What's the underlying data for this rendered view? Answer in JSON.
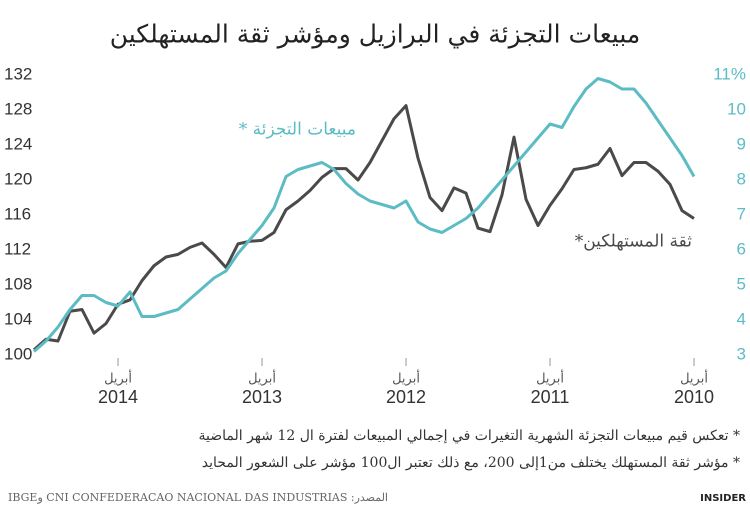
{
  "chart_data": {
    "type": "line",
    "title": "مبيعات التجزئة في البرازيل ومؤشر ثقة المستهلكين",
    "categories": [
      null,
      null,
      null,
      null,
      null,
      null,
      null,
      "أبريل",
      null,
      null,
      null,
      null,
      null,
      null,
      null,
      null,
      null,
      null,
      null,
      "أبريل",
      null,
      null,
      null,
      null,
      null,
      null,
      null,
      null,
      null,
      null,
      null,
      "أبريل",
      null,
      null,
      null,
      null,
      null,
      null,
      null,
      null,
      null,
      null,
      null,
      "أبريل",
      null,
      null,
      null,
      null,
      null,
      null,
      null,
      null,
      null,
      null,
      null,
      "أبريل"
    ],
    "years": [
      null,
      null,
      null,
      null,
      null,
      null,
      null,
      "2014",
      null,
      null,
      null,
      null,
      null,
      null,
      null,
      null,
      null,
      null,
      null,
      "2013",
      null,
      null,
      null,
      null,
      null,
      null,
      null,
      null,
      null,
      null,
      null,
      "2012",
      null,
      null,
      null,
      null,
      null,
      null,
      null,
      null,
      null,
      null,
      null,
      "2011",
      null,
      null,
      null,
      null,
      null,
      null,
      null,
      null,
      null,
      null,
      null,
      "2010"
    ],
    "series": [
      {
        "name": "ثقة المستهلكين*",
        "color": "#4a4a4a",
        "axis": "y",
        "values": [
          100.6,
          101.8,
          101.6,
          105,
          105.2,
          102.5,
          103.6,
          105.8,
          106.3,
          108.5,
          110.2,
          111.2,
          111.5,
          112.3,
          112.8,
          111.5,
          110,
          112.7,
          113,
          113.1,
          114,
          116.6,
          117.6,
          118.8,
          120.3,
          121.3,
          121.3,
          120,
          122,
          124.5,
          127,
          128.5,
          122.5,
          118,
          116.5,
          119.1,
          118.5,
          114.5,
          114.1,
          118.3,
          124.9,
          117.8,
          114.8,
          117.1,
          119,
          121.2,
          121.4,
          121.8,
          123.6,
          120.5,
          122,
          122,
          121,
          119.5,
          116.5,
          115.6
        ]
      },
      {
        "name": "مبيعات التجزئة *",
        "color": "#5bbcc4",
        "axis": "y2",
        "values": [
          3.1,
          3.4,
          3.8,
          4.3,
          4.7,
          4.7,
          4.5,
          4.4,
          4.8,
          4.1,
          4.1,
          4.2,
          4.3,
          4.6,
          4.9,
          5.2,
          5.4,
          5.9,
          6.3,
          6.7,
          7.2,
          8.1,
          8.3,
          8.4,
          8.5,
          8.3,
          7.9,
          7.6,
          7.4,
          7.3,
          7.2,
          7.4,
          6.8,
          6.6,
          6.5,
          6.7,
          6.9,
          7.2,
          7.6,
          8,
          8.4,
          8.8,
          9.2,
          9.6,
          9.5,
          10.1,
          10.6,
          10.9,
          10.8,
          10.6,
          10.6,
          10.2,
          9.7,
          9.2,
          8.7,
          8.1
        ]
      }
    ],
    "ylim": [
      100,
      132
    ],
    "yticks": [
      100,
      104,
      108,
      112,
      116,
      120,
      124,
      128,
      132
    ],
    "y2lim": [
      3,
      11
    ],
    "y2ticks": [
      3,
      4,
      5,
      6,
      7,
      8,
      9,
      10,
      {
        "value": 11,
        "label": "11%"
      }
    ],
    "grid": false,
    "footnotes": [
      "* تعكس قيم مبيعات التجزئة الشهرية التغيرات في إجمالي المبيعات لفترة ال 12 شهر الماضية",
      "* مؤشر ثقة المستهلك يختلف من1إلى 200، مع ذلك تعتبر ال100 مؤشر على الشعور المحايد"
    ],
    "source": "المصدر: CNI CONFEDERACAO NACIONAL DAS INDUSTRIAS وIBGE",
    "brand": "INSIDER"
  }
}
